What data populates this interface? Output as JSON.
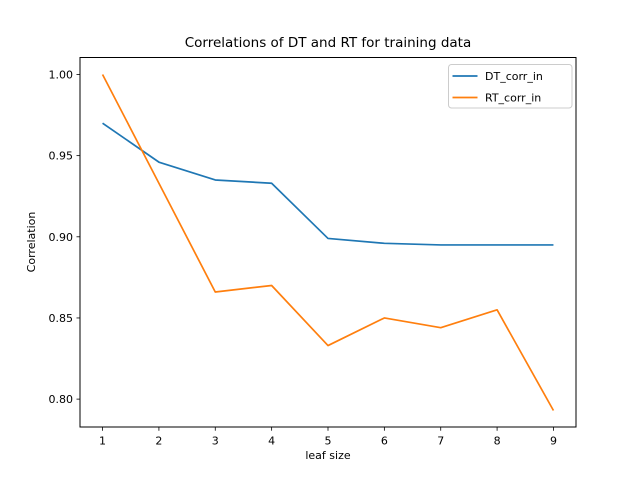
{
  "chart_data": {
    "type": "line",
    "title": "Correlations of DT and RT for training data",
    "xlabel": "leaf size",
    "ylabel": "Correlation",
    "x": [
      1,
      2,
      3,
      4,
      5,
      6,
      7,
      8,
      9
    ],
    "series": [
      {
        "name": "DT_corr_in",
        "color": "#1f77b4",
        "values": [
          0.97,
          0.946,
          0.935,
          0.933,
          0.899,
          0.896,
          0.895,
          0.895,
          0.895
        ]
      },
      {
        "name": "RT_corr_in",
        "color": "#ff7f0e",
        "values": [
          1.0,
          0.933,
          0.866,
          0.87,
          0.833,
          0.85,
          0.844,
          0.855,
          0.793
        ]
      }
    ],
    "xticks": [
      1,
      2,
      3,
      4,
      5,
      6,
      7,
      8,
      9
    ],
    "yticks": [
      "0.80",
      "0.85",
      "0.90",
      "0.95",
      "1.00"
    ],
    "xlim": [
      0.6,
      9.4
    ],
    "ylim": [
      0.7827,
      1.0104
    ],
    "grid": false,
    "legend_position": "upper right",
    "background_color": "#ffffff",
    "spine_color": "#000000",
    "legend_border_color": "#cccccc"
  }
}
